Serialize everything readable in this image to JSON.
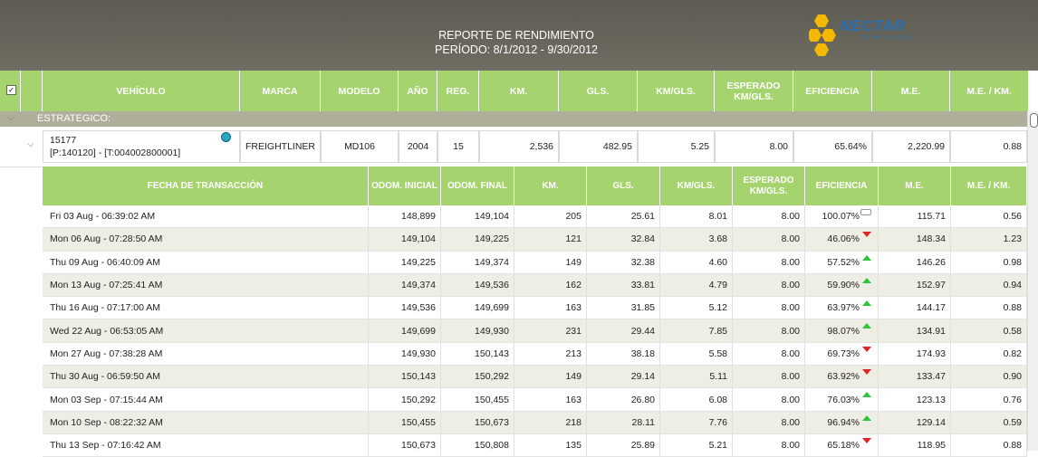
{
  "report": {
    "title": "REPORTE DE RENDIMIENTO",
    "period": "PERÍODO: 8/1/2012 - 9/30/2012",
    "logo": {
      "name": "NECTAR",
      "sub": "TECHNOLOGIES",
      "color": "#2a6fb1",
      "accent": "#f5b800"
    }
  },
  "columns": [
    "VEHÍCULO",
    "MARCA",
    "MODELO",
    "AÑO",
    "REG.",
    "KM.",
    "GLS.",
    "KM/GLS.",
    "ESPERADO KM/GLS.",
    "EFICIENCIA",
    "M.E.",
    "M.E. / KM."
  ],
  "group": {
    "label": "ESTRATEGICO:"
  },
  "vehicle": {
    "id": "15177",
    "ids": "[P:140120] - [T:004002800001]",
    "marca": "FREIGHTLINER",
    "modelo": "MD106",
    "anio": "2004",
    "reg": "15",
    "km": "2,536",
    "gls": "482.95",
    "kmgls": "5.25",
    "esperado": "8.00",
    "eficiencia": "65.64%",
    "me": "2,220.99",
    "mekm": "0.88"
  },
  "sub_columns": [
    "FECHA DE TRANSACCIÓN",
    "ODOM. INICIAL",
    "ODOM. FINAL",
    "KM.",
    "GLS.",
    "KM/GLS.",
    "ESPERADO KM/GLS.",
    "EFICIENCIA",
    "M.E.",
    "M.E. / KM."
  ],
  "transactions": [
    {
      "fecha": "Fri 03 Aug - 06:39:02 AM",
      "ini": "148,899",
      "fin": "149,104",
      "km": "205",
      "gls": "25.61",
      "kmgls": "8.01",
      "esp": "8.00",
      "ef": "100.07%",
      "trend": "neutral",
      "me": "115.71",
      "mekm": "0.56"
    },
    {
      "fecha": "Mon 06 Aug - 07:28:50 AM",
      "ini": "149,104",
      "fin": "149,225",
      "km": "121",
      "gls": "32.84",
      "kmgls": "3.68",
      "esp": "8.00",
      "ef": "46.06%",
      "trend": "down",
      "me": "148.34",
      "mekm": "1.23"
    },
    {
      "fecha": "Thu 09 Aug - 06:40:09 AM",
      "ini": "149,225",
      "fin": "149,374",
      "km": "149",
      "gls": "32.38",
      "kmgls": "4.60",
      "esp": "8.00",
      "ef": "57.52%",
      "trend": "up",
      "me": "146.26",
      "mekm": "0.98"
    },
    {
      "fecha": "Mon 13 Aug - 07:25:41 AM",
      "ini": "149,374",
      "fin": "149,536",
      "km": "162",
      "gls": "33.81",
      "kmgls": "4.79",
      "esp": "8.00",
      "ef": "59.90%",
      "trend": "up",
      "me": "152.97",
      "mekm": "0.94"
    },
    {
      "fecha": "Thu 16 Aug - 07:17:00 AM",
      "ini": "149,536",
      "fin": "149,699",
      "km": "163",
      "gls": "31.85",
      "kmgls": "5.12",
      "esp": "8.00",
      "ef": "63.97%",
      "trend": "up",
      "me": "144.17",
      "mekm": "0.88"
    },
    {
      "fecha": "Wed 22 Aug - 06:53:05 AM",
      "ini": "149,699",
      "fin": "149,930",
      "km": "231",
      "gls": "29.44",
      "kmgls": "7.85",
      "esp": "8.00",
      "ef": "98.07%",
      "trend": "up",
      "me": "134.91",
      "mekm": "0.58"
    },
    {
      "fecha": "Mon 27 Aug - 07:38:28 AM",
      "ini": "149,930",
      "fin": "150,143",
      "km": "213",
      "gls": "38.18",
      "kmgls": "5.58",
      "esp": "8.00",
      "ef": "69.73%",
      "trend": "down",
      "me": "174.93",
      "mekm": "0.82"
    },
    {
      "fecha": "Thu 30 Aug - 06:59:50 AM",
      "ini": "150,143",
      "fin": "150,292",
      "km": "149",
      "gls": "29.14",
      "kmgls": "5.11",
      "esp": "8.00",
      "ef": "63.92%",
      "trend": "down",
      "me": "133.47",
      "mekm": "0.90"
    },
    {
      "fecha": "Mon 03 Sep - 07:15:44 AM",
      "ini": "150,292",
      "fin": "150,455",
      "km": "163",
      "gls": "26.80",
      "kmgls": "6.08",
      "esp": "8.00",
      "ef": "76.03%",
      "trend": "up",
      "me": "123.13",
      "mekm": "0.76"
    },
    {
      "fecha": "Mon 10 Sep - 08:22:32 AM",
      "ini": "150,455",
      "fin": "150,673",
      "km": "218",
      "gls": "28.11",
      "kmgls": "7.76",
      "esp": "8.00",
      "ef": "96.94%",
      "trend": "up",
      "me": "129.14",
      "mekm": "0.59"
    },
    {
      "fecha": "Thu 13 Sep - 07:16:42 AM",
      "ini": "150,673",
      "fin": "150,808",
      "km": "135",
      "gls": "25.89",
      "kmgls": "5.21",
      "esp": "8.00",
      "ef": "65.18%",
      "trend": "down",
      "me": "118.95",
      "mekm": "0.88"
    }
  ]
}
